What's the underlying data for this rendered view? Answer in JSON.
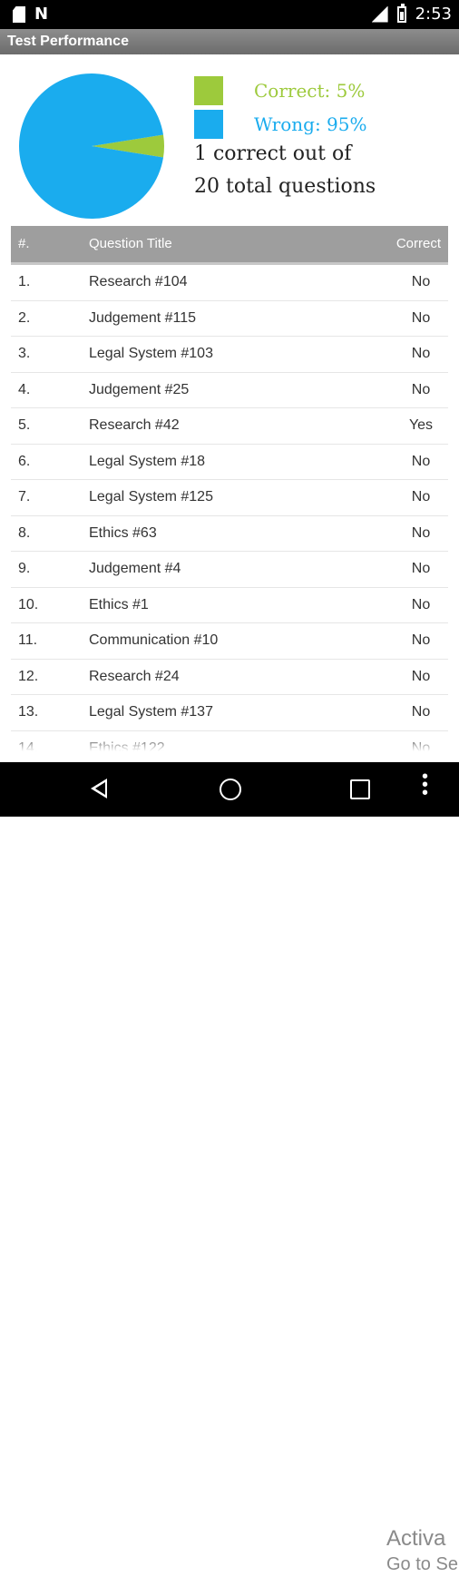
{
  "status_bar": {
    "time": "2:53"
  },
  "app_title": "Test Performance",
  "chart_data": {
    "type": "pie",
    "slices": [
      {
        "label": "Correct",
        "value": 5,
        "color": "#9dca3c"
      },
      {
        "label": "Wrong",
        "value": 95,
        "color": "#1aacee"
      }
    ]
  },
  "legend": {
    "correct": "Correct: 5%",
    "wrong": "Wrong: 95%"
  },
  "summary": {
    "line1": "1 correct out of",
    "line2": "20 total questions"
  },
  "table": {
    "headers": {
      "num": "#.",
      "title": "Question Title",
      "correct": "Correct"
    },
    "rows": [
      {
        "num": "1.",
        "title": "Research #104",
        "correct": "No"
      },
      {
        "num": "2.",
        "title": "Judgement #115",
        "correct": "No"
      },
      {
        "num": "3.",
        "title": "Legal System #103",
        "correct": "No"
      },
      {
        "num": "4.",
        "title": "Judgement #25",
        "correct": "No"
      },
      {
        "num": "5.",
        "title": "Research #42",
        "correct": "Yes"
      },
      {
        "num": "6.",
        "title": "Legal System #18",
        "correct": "No"
      },
      {
        "num": "7.",
        "title": "Legal System #125",
        "correct": "No"
      },
      {
        "num": "8.",
        "title": "Ethics #63",
        "correct": "No"
      },
      {
        "num": "9.",
        "title": "Judgement #4",
        "correct": "No"
      },
      {
        "num": "10.",
        "title": "Ethics #1",
        "correct": "No"
      },
      {
        "num": "11.",
        "title": "Communication #10",
        "correct": "No"
      },
      {
        "num": "12.",
        "title": "Research #24",
        "correct": "No"
      },
      {
        "num": "13.",
        "title": "Legal System #137",
        "correct": "No"
      },
      {
        "num": "14.",
        "title": "Ethics #122",
        "correct": "No"
      }
    ]
  },
  "watermark": {
    "line1": "Activa",
    "line2": "Go to Se"
  }
}
